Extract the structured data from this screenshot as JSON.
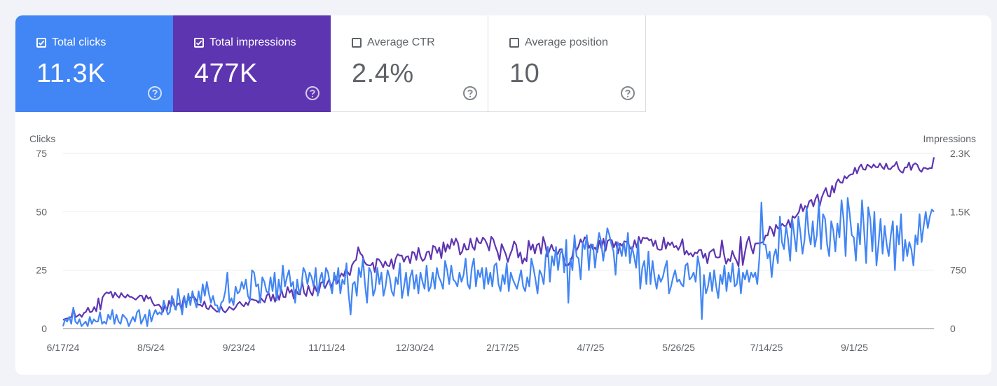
{
  "metrics": [
    {
      "label": "Total clicks",
      "value": "11.3K",
      "checked": true,
      "color": "#4285f4"
    },
    {
      "label": "Total impressions",
      "value": "477K",
      "checked": true,
      "color": "#5e35b1"
    },
    {
      "label": "Average CTR",
      "value": "2.4%",
      "checked": false,
      "color": "#ffffff"
    },
    {
      "label": "Average position",
      "value": "10",
      "checked": false,
      "color": "#ffffff"
    }
  ],
  "chart_data": {
    "type": "line",
    "left_axis": {
      "label": "Clicks",
      "ticks": [
        "0",
        "25",
        "50",
        "75"
      ],
      "ylim": [
        0,
        75
      ]
    },
    "right_axis": {
      "label": "Impressions",
      "ticks": [
        "0",
        "750",
        "1.5K",
        "2.3K"
      ],
      "ylim": [
        0,
        2250
      ]
    },
    "x_ticks": [
      "6/17/24",
      "8/5/24",
      "9/23/24",
      "11/11/24",
      "12/30/24",
      "2/17/25",
      "4/7/25",
      "5/26/25",
      "7/14/25",
      "9/1/25"
    ],
    "x_range": [
      "6/17/24",
      "10/22/25"
    ],
    "grid": true,
    "series": [
      {
        "axis": "left",
        "color": "#4285f4",
        "values": [
          1,
          4,
          3,
          5,
          2,
          9,
          3,
          2,
          4,
          1,
          2,
          3,
          1,
          5,
          2,
          4,
          3,
          3,
          7,
          2,
          3,
          2,
          6,
          4,
          8,
          2,
          6,
          3,
          2,
          6,
          5,
          4,
          1,
          3,
          5,
          3,
          7,
          8,
          2,
          4,
          6,
          1,
          8,
          3,
          6,
          8,
          6,
          7,
          6,
          12,
          9,
          6,
          7,
          14,
          10,
          8,
          17,
          11,
          6,
          14,
          9,
          15,
          10,
          16,
          12,
          9,
          16,
          11,
          19,
          14,
          20,
          15,
          11,
          14,
          10,
          10,
          7,
          11,
          12,
          16,
          24,
          11,
          13,
          10,
          18,
          15,
          16,
          20,
          17,
          21,
          14,
          12,
          25,
          24,
          18,
          19,
          11,
          22,
          20,
          16,
          15,
          22,
          16,
          24,
          12,
          21,
          15,
          27,
          18,
          22,
          25,
          18,
          20,
          11,
          21,
          15,
          18,
          26,
          24,
          19,
          24,
          22,
          18,
          26,
          14,
          21,
          24,
          18,
          26,
          24,
          19,
          15,
          24,
          19,
          26,
          15,
          21,
          19,
          28,
          15,
          6,
          19,
          20,
          14,
          26,
          22,
          30,
          19,
          11,
          26,
          24,
          14,
          17,
          26,
          19,
          24,
          14,
          18,
          25,
          22,
          16,
          14,
          22,
          19,
          28,
          13,
          18,
          24,
          14,
          22,
          25,
          17,
          23,
          15,
          24,
          20,
          17,
          27,
          16,
          18,
          24,
          17,
          26,
          22,
          20,
          17,
          29,
          25,
          19,
          27,
          21,
          20,
          18,
          24,
          20,
          23,
          30,
          19,
          17,
          26,
          30,
          18,
          25,
          22,
          26,
          17,
          26,
          19,
          24,
          18,
          27,
          28,
          19,
          16,
          23,
          19,
          28,
          16,
          24,
          21,
          19,
          17,
          21,
          25,
          18,
          16,
          22,
          18,
          30,
          26,
          21,
          15,
          25,
          23,
          19,
          31,
          35,
          20,
          31,
          27,
          35,
          25,
          32,
          34,
          24,
          38,
          11,
          30,
          25,
          40,
          31,
          30,
          21,
          37,
          34,
          40,
          25,
          36,
          36,
          26,
          35,
          41,
          37,
          29,
          36,
          43,
          40,
          36,
          33,
          23,
          37,
          35,
          31,
          37,
          31,
          41,
          28,
          35,
          31,
          26,
          38,
          17,
          26,
          29,
          19,
          33,
          19,
          29,
          22,
          17,
          23,
          20,
          22,
          26,
          29,
          15,
          18,
          22,
          25,
          20,
          21,
          19,
          18,
          27,
          28,
          21,
          22,
          24,
          20,
          31,
          26,
          4,
          23,
          15,
          18,
          24,
          16,
          25,
          18,
          13,
          23,
          19,
          27,
          16,
          24,
          20,
          28,
          18,
          19,
          26,
          15,
          24,
          21,
          25,
          20,
          24,
          22,
          24,
          19,
          30,
          54,
          36,
          36,
          30,
          33,
          22,
          31,
          34,
          28,
          48,
          37,
          34,
          44,
          38,
          29,
          47,
          40,
          33,
          48,
          41,
          32,
          38,
          52,
          41,
          36,
          46,
          35,
          40,
          54,
          34,
          49,
          47,
          36,
          31,
          46,
          42,
          33,
          45,
          39,
          55,
          47,
          31,
          56,
          49,
          40,
          39,
          29,
          45,
          36,
          55,
          42,
          28,
          52,
          47,
          33,
          50,
          27,
          36,
          47,
          32,
          44,
          36,
          31,
          40,
          46,
          25,
          44,
          36,
          49,
          29,
          38,
          31,
          37,
          34,
          27,
          40,
          36,
          49,
          37,
          44,
          50,
          43,
          48,
          51,
          50
        ]
      },
      {
        "axis": "right",
        "color": "#5e35b1",
        "values": [
          111,
          124,
          130,
          133,
          152,
          255,
          145,
          163,
          183,
          149,
          199,
          214,
          269,
          209,
          219,
          276,
          222,
          388,
          244,
          401,
          442,
          465,
          451,
          475,
          398,
          461,
          422,
          396,
          456,
          417,
          397,
          436,
          409,
          405,
          388,
          371,
          399,
          425,
          420,
          352,
          427,
          383,
          403,
          335,
          295,
          301,
          308,
          278,
          213,
          298,
          233,
          358,
          286,
          377,
          246,
          313,
          324,
          246,
          396,
          322,
          364,
          397,
          400,
          408,
          369,
          306,
          305,
          285,
          349,
          263,
          248,
          301,
          265,
          242,
          216,
          227,
          285,
          229,
          207,
          238,
          278,
          260,
          240,
          271,
          318,
          343,
          308,
          286,
          335,
          301,
          373,
          376,
          365,
          361,
          331,
          397,
          365,
          337,
          424,
          455,
          355,
          437,
          344,
          452,
          369,
          507,
          407,
          403,
          535,
          461,
          499,
          384,
          503,
          445,
          438,
          606,
          459,
          417,
          550,
          468,
          424,
          554,
          478,
          460,
          584,
          604,
          520,
          575,
          633,
          530,
          600,
          674,
          582,
          655,
          708,
          674,
          764,
          724,
          685,
          814,
          860,
          883,
          1045,
          966,
          939,
          856,
          822,
          812,
          811,
          847,
          724,
          896,
          886,
          847,
          787,
          863,
          810,
          802,
          891,
          768,
          896,
          955,
          937,
          939,
          858,
          919,
          930,
          839,
          987,
          972,
          883,
          1037,
          924,
          868,
          894,
          982,
          992,
          891,
          1062,
          1049,
          972,
          1040,
          904,
          1109,
          985,
          1083,
          1025,
          1150,
          1074,
          1156,
          1098,
          950,
          987,
          1090,
          1013,
          1018,
          1156,
          1049,
          1011,
          1166,
          1105,
          1096,
          1170,
          1140,
          1084,
          1003,
          1179,
          1146,
          1055,
          985,
          879,
          1086,
          1021,
          956,
          857,
          944,
          1011,
          1120,
          1075,
          913,
          978,
          834,
          903,
          864,
          1128,
          1012,
          1082,
          963,
          1074,
          1093,
          960,
          1177,
          1084,
          925,
          1006,
          1079,
          1003,
          992,
          957,
          1018,
          1021,
          865,
          808,
          813,
          858,
          928,
          1087,
          1001,
          1057,
          1146,
          1090,
          1173,
          1150,
          1037,
          1083,
          1016,
          1041,
          980,
          1131,
          1034,
          1154,
          1000,
          1126,
          1144,
          1137,
          1044,
          1112,
          965,
          1091,
          1062,
          1121,
          1113,
          1090,
          1025,
          1022,
          1136,
          1041,
          1178,
          1097,
          1170,
          1158,
          1165,
          1133,
          1146,
          1060,
          1130,
          1023,
          1011,
          1015,
          1170,
          1025,
          1109,
          1072,
          1109,
          1044,
          1061,
          1011,
          1065,
          1149,
          951,
          999,
          948,
          968,
          925,
          976,
          966,
          1009,
          1012,
          907,
          963,
          838,
          978,
          999,
          1021,
          920,
          911,
          919,
          1133,
          953,
          832,
          895,
          866,
          997,
          921,
          872,
          800,
          1178,
          815,
          968,
          1107,
          1178,
          1050,
          963,
          1091,
          1094,
          1096,
          1104,
          1116,
          1197,
          1196,
          1311,
          1274,
          1189,
          1332,
          1284,
          1306,
          1347,
          1317,
          1325,
          1394,
          1299,
          1444,
          1421,
          1455,
          1495,
          1598,
          1507,
          1575,
          1548,
          1634,
          1654,
          1569,
          1667,
          1722,
          1574,
          1683,
          1750,
          1806,
          1706,
          1696,
          1834,
          1746,
          1872,
          1919,
          1877,
          1874,
          1958,
          1927,
          1962,
          1980,
          1983,
          2067,
          1994,
          2071,
          2108,
          2045,
          2040,
          2107,
          2087,
          2065,
          2109,
          2074,
          2071,
          2121,
          2076,
          2048,
          2119,
          2052,
          2046,
          2080,
          2093,
          2140,
          2052,
          2016,
          2002,
          2070,
          2070,
          2134,
          2037,
          2105,
          2123,
          2105,
          2039,
          2013,
          2065,
          2062,
          2047,
          2062,
          2061,
          2201
        ]
      }
    ]
  }
}
